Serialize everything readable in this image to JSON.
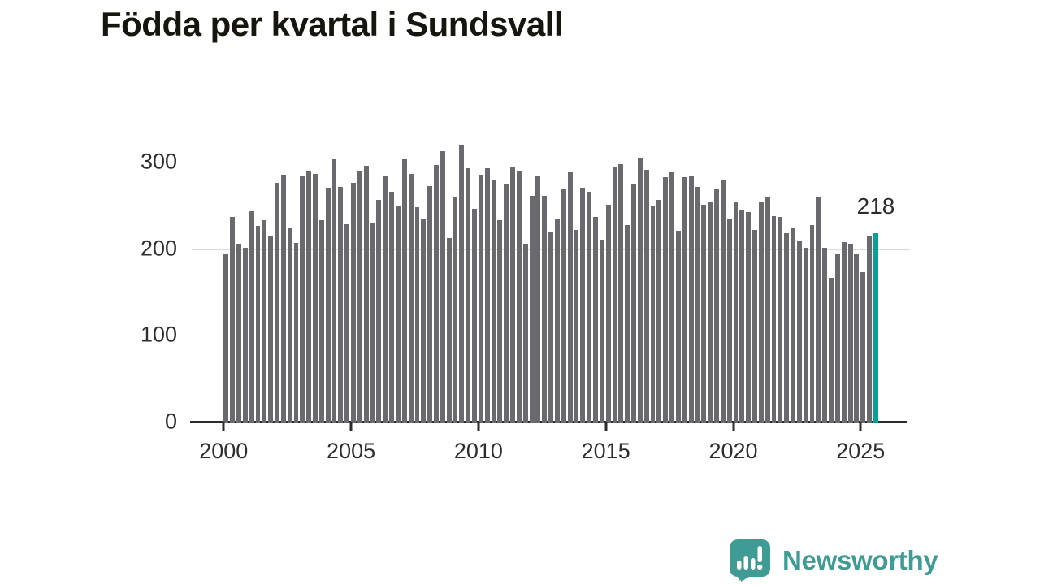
{
  "title": "Födda per kvartal i Sundsvall",
  "annotation": {
    "label": "218"
  },
  "logo": {
    "text": "Newsworthy",
    "icon": "speech-bubble-bar-chart-icon"
  },
  "colors": {
    "background": "#ffffff",
    "title_text": "#16160f",
    "bar": "#6a6a6e",
    "highlight": "#0b9f98",
    "axis": "#2b2b2b",
    "axis_label": "#2e2e2e",
    "gridline": "#dcdcdc",
    "logo_teal": "#3f9c95",
    "annotation_text": "#2d2d2d"
  },
  "chart_data": {
    "type": "bar",
    "title": "Födda per kvartal i Sundsvall",
    "xlabel": "",
    "ylabel": "",
    "frequency": "quarterly",
    "start_period": "2000 Q1",
    "end_period": "2025 Q3",
    "series": [
      {
        "name": "Födda per kvartal",
        "values": [
          195,
          237,
          206,
          202,
          244,
          227,
          233,
          216,
          277,
          286,
          225,
          207,
          285,
          291,
          287,
          233,
          271,
          304,
          272,
          229,
          277,
          291,
          296,
          231,
          257,
          284,
          266,
          250,
          304,
          287,
          248,
          234,
          273,
          297,
          313,
          213,
          260,
          320,
          293,
          247,
          286,
          293,
          280,
          233,
          276,
          295,
          291,
          206,
          262,
          284,
          262,
          220,
          234,
          270,
          289,
          222,
          271,
          266,
          237,
          211,
          251,
          294,
          298,
          228,
          275,
          306,
          292,
          249,
          257,
          283,
          289,
          221,
          283,
          285,
          272,
          251,
          254,
          270,
          279,
          235,
          254,
          246,
          243,
          222,
          254,
          261,
          238,
          237,
          218,
          225,
          210,
          202,
          228,
          260,
          202,
          167,
          194,
          208,
          206,
          194,
          173,
          215,
          218
        ]
      }
    ],
    "highlight": {
      "index": 102,
      "period": "2025 Q3",
      "value": 218
    },
    "xticks": [
      2000,
      2005,
      2010,
      2015,
      2020,
      2025
    ],
    "yticks": [
      0,
      100,
      200,
      300
    ],
    "ylim": [
      0,
      320
    ],
    "grid": "horizontal",
    "legend": "none"
  }
}
